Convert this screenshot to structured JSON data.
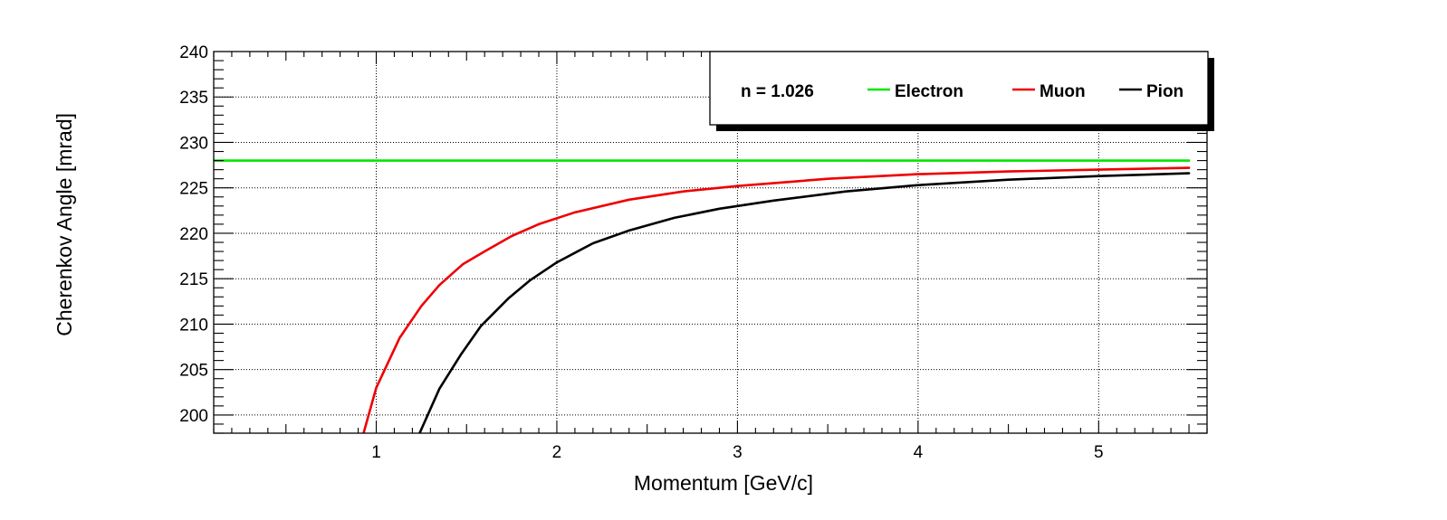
{
  "chart_data": {
    "type": "line",
    "title": "",
    "xlabel": "Momentum [GeV/c]",
    "ylabel": "Cherenkov Angle [mrad]",
    "xlim": [
      0.1,
      5.6
    ],
    "ylim": [
      198,
      240
    ],
    "x_ticks": [
      1,
      2,
      3,
      4,
      5
    ],
    "y_ticks": [
      200,
      205,
      210,
      215,
      220,
      225,
      230,
      235,
      240
    ],
    "grid": true,
    "legend_position": "top-right",
    "legend_header": "n = 1.026",
    "series": [
      {
        "name": "Electron",
        "color": "#00e600",
        "points": [
          [
            0.1,
            228.0
          ],
          [
            5.5,
            228.0
          ]
        ]
      },
      {
        "name": "Muon",
        "color": "#ee0000",
        "points": [
          [
            0.93,
            198.0
          ],
          [
            1.0,
            203.0
          ],
          [
            1.13,
            208.5
          ],
          [
            1.25,
            212.0
          ],
          [
            1.35,
            214.3
          ],
          [
            1.48,
            216.6
          ],
          [
            1.6,
            218.0
          ],
          [
            1.75,
            219.7
          ],
          [
            1.9,
            221.0
          ],
          [
            2.1,
            222.3
          ],
          [
            2.4,
            223.7
          ],
          [
            2.7,
            224.6
          ],
          [
            3.0,
            225.2
          ],
          [
            3.5,
            226.0
          ],
          [
            4.0,
            226.5
          ],
          [
            4.5,
            226.8
          ],
          [
            5.0,
            227.0
          ],
          [
            5.5,
            227.2
          ]
        ]
      },
      {
        "name": "Pion",
        "color": "#000000",
        "points": [
          [
            1.24,
            198.0
          ],
          [
            1.35,
            202.9
          ],
          [
            1.47,
            206.7
          ],
          [
            1.58,
            209.8
          ],
          [
            1.73,
            212.8
          ],
          [
            1.85,
            214.8
          ],
          [
            2.0,
            216.8
          ],
          [
            2.2,
            218.9
          ],
          [
            2.4,
            220.3
          ],
          [
            2.65,
            221.7
          ],
          [
            2.9,
            222.7
          ],
          [
            3.2,
            223.6
          ],
          [
            3.6,
            224.6
          ],
          [
            4.0,
            225.3
          ],
          [
            4.5,
            225.9
          ],
          [
            5.0,
            226.3
          ],
          [
            5.5,
            226.6
          ]
        ]
      }
    ]
  }
}
